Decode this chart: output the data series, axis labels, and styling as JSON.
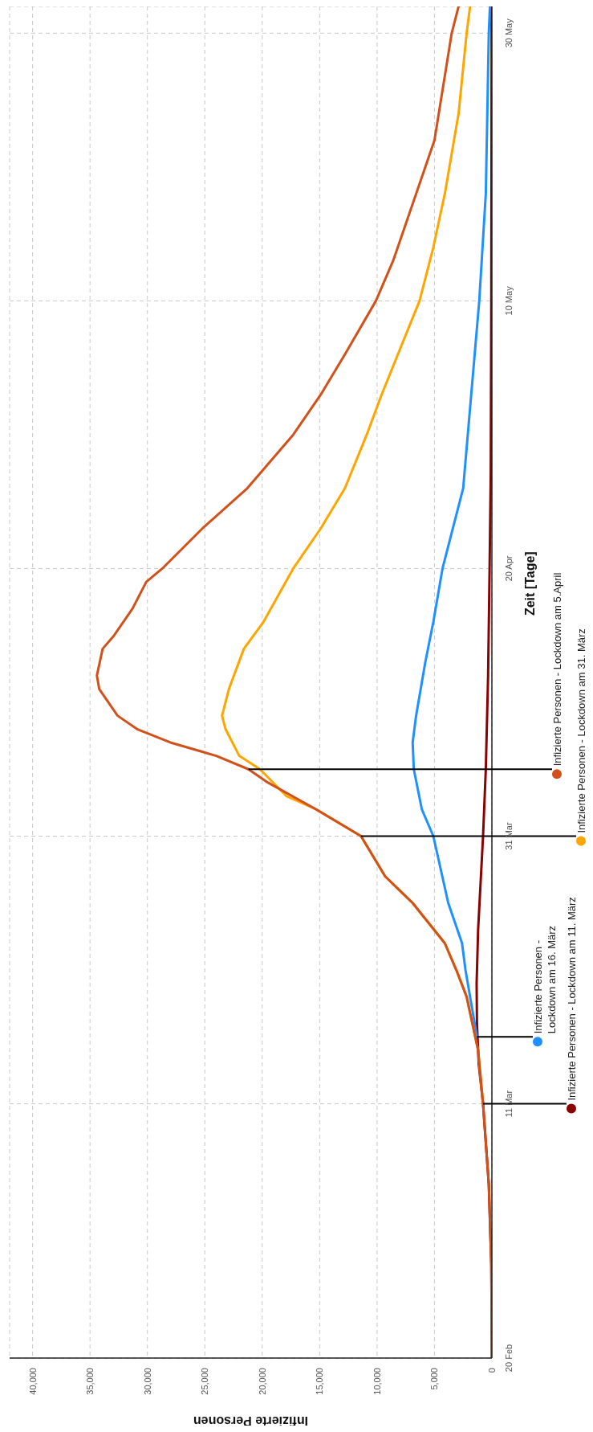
{
  "chart_data": {
    "type": "line",
    "orientation": "horizontal",
    "xlabel": "Infizierte Personen",
    "ylabel": "Zeit [Tage]",
    "ylim": [
      "--02-20",
      "--06-01"
    ],
    "yticks": [
      {
        "value": "--02-20",
        "label": "20 Feb"
      },
      {
        "value": "--03-11",
        "label": "11 Mar"
      },
      {
        "value": "--03-31",
        "label": "31 Mar"
      },
      {
        "value": "--04-20",
        "label": "20 Apr"
      },
      {
        "value": "--05-10",
        "label": "10 May"
      },
      {
        "value": "--05-30",
        "label": "30 May"
      }
    ],
    "xlim": [
      42000,
      0
    ],
    "xticks": [
      0,
      {
        "value": 5000,
        "label": "5,000"
      },
      {
        "value": 10000,
        "label": "10,000"
      },
      {
        "value": 15000,
        "label": "15,000"
      },
      {
        "value": 20000,
        "label": "20,000"
      },
      {
        "value": 25000,
        "label": "25,000"
      },
      {
        "value": 30000,
        "label": "30,000"
      },
      {
        "value": 35000,
        "label": "35,000"
      },
      {
        "value": 40000,
        "label": "40,000"
      }
    ],
    "grid": true,
    "series": [
      {
        "color": "#8b0000",
        "x": [
          "--02-20",
          "--02-27",
          "--03-05",
          "--03-11",
          "--03-14",
          "--03-17",
          "--03-20",
          "--03-24",
          "--03-31",
          "--04-05",
          "--04-12",
          "--04-20",
          "--04-27",
          "--05-10",
          "--05-30",
          "--06-01"
        ],
        "values": [
          0,
          50,
          270,
          770,
          1150,
          1300,
          1330,
          1200,
          770,
          530,
          330,
          200,
          100,
          50,
          20,
          20
        ]
      },
      {
        "color": "#1e90ff",
        "x": [
          "--03-16",
          "--03-21",
          "--03-23",
          "--03-26",
          "--03-31",
          "--04-02",
          "--04-05",
          "--04-07",
          "--04-09",
          "--04-13",
          "--04-16",
          "--04-20",
          "--04-26",
          "--05-04",
          "--05-10",
          "--05-18",
          "--05-30",
          "--06-01"
        ],
        "values": [
          1300,
          2300,
          2600,
          3800,
          5100,
          6100,
          6800,
          6900,
          6600,
          5800,
          5100,
          4300,
          2500,
          1700,
          1100,
          530,
          270,
          170
        ]
      },
      {
        "color": "#ffa500",
        "x": [
          "--03-11",
          "--03-15",
          "--03-19",
          "--03-21",
          "--03-23",
          "--03-26",
          "--03-28",
          "--03-31",
          "--04-02",
          "--04-03",
          "--04-05",
          "--04-06",
          "--04-08",
          "--04-09",
          "--04-11",
          "--04-14",
          "--04-16",
          "--04-20",
          "--04-23",
          "--04-26",
          "--04-30",
          "--05-03",
          "--05-10",
          "--05-14",
          "--05-18",
          "--05-24",
          "--05-30",
          "--06-01"
        ],
        "values": [
          770,
          1200,
          2200,
          3100,
          4100,
          6900,
          9300,
          11400,
          15300,
          17900,
          20200,
          22000,
          23200,
          23500,
          22900,
          21600,
          19900,
          17300,
          14900,
          12800,
          10900,
          9600,
          6300,
          5100,
          4100,
          2900,
          2200,
          1900
        ]
      },
      {
        "color": "#d2501a",
        "x": [
          "--02-20",
          "--02-27",
          "--03-05",
          "--03-11",
          "--03-15",
          "--03-19",
          "--03-21",
          "--03-23",
          "--03-26",
          "--03-28",
          "--03-31",
          "--04-02",
          "--04-04",
          "--04-05",
          "--04-06",
          "--04-07",
          "--04-08",
          "--04-09",
          "--04-11",
          "--04-12",
          "--04-14",
          "--04-15",
          "--04-17",
          "--04-19",
          "--04-20",
          "--04-23",
          "--04-26",
          "--04-30",
          "--05-03",
          "--05-06",
          "--05-10",
          "--05-13",
          "--05-18",
          "--05-22",
          "--05-30",
          "--06-01"
        ],
        "values": [
          0,
          50,
          270,
          770,
          1200,
          2200,
          3100,
          4100,
          6900,
          9300,
          11400,
          15300,
          19500,
          21200,
          24000,
          28000,
          30900,
          32600,
          34200,
          34400,
          33900,
          32900,
          31300,
          30100,
          28700,
          25200,
          21300,
          17300,
          14900,
          12800,
          10100,
          8600,
          6600,
          5000,
          3500,
          2900
        ]
      }
    ],
    "annotations": [
      {
        "text": "Infizierte Personen - Lockdown am 11. März",
        "x": 770,
        "y": "--03-11"
      },
      {
        "text": "Infizierte Personen - Lockdown am 16. März",
        "x": 1300,
        "y": "--03-16"
      },
      {
        "text": "Infizierte Personen - Lockdown am 31. März",
        "x": 11400,
        "y": "--03-31"
      },
      {
        "text": "Infizierte Personen - Lockdown am 5.April",
        "x": 21200,
        "y": "--04-05"
      }
    ]
  }
}
